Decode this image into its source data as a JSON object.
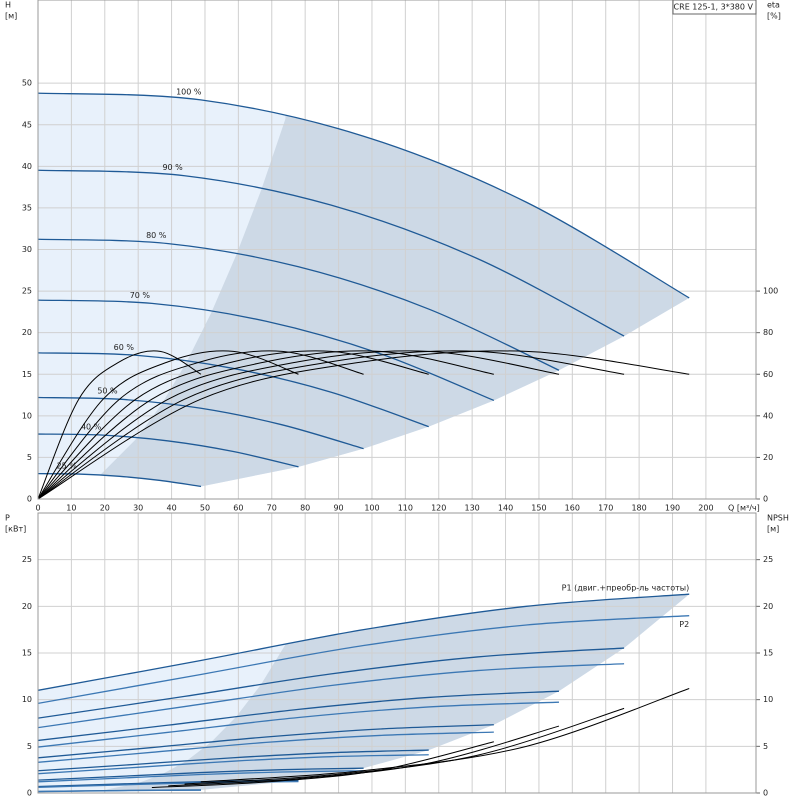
{
  "chart_data": [
    {
      "type": "line",
      "title": "CRE 125-1, 3*380 V",
      "x_label": "Q [м³/ч]",
      "y_label": "H",
      "y_unit": "[м]",
      "y2_label": "eta",
      "y2_unit": "[%]",
      "xlim": [
        0,
        215
      ],
      "xticks": [
        0,
        10,
        20,
        30,
        40,
        50,
        60,
        70,
        80,
        90,
        100,
        110,
        120,
        130,
        140,
        150,
        160,
        170,
        180,
        190,
        200
      ],
      "ylim": [
        0,
        60
      ],
      "yticks": [
        0,
        5,
        10,
        15,
        20,
        25,
        30,
        35,
        40,
        45,
        50
      ],
      "y2lim": [
        0,
        240
      ],
      "y2ticks": [
        0,
        20,
        40,
        60,
        80,
        100
      ],
      "grid": true,
      "series": [
        {
          "name": "100 %",
          "color": "#1f5a96",
          "x": [
            0,
            48.75,
            97.5,
            146.25,
            195
          ],
          "values": [
            48.8,
            47.99,
            43.62,
            35.68,
            24.18
          ]
        },
        {
          "name": "90 %",
          "color": "#1f5a96",
          "x": [
            0,
            43.9,
            87.8,
            131.6,
            175.5
          ],
          "values": [
            39.53,
            38.87,
            35.33,
            28.9,
            19.59
          ]
        },
        {
          "name": "80 %",
          "color": "#1f5a96",
          "x": [
            0,
            39,
            78,
            117,
            156
          ],
          "values": [
            31.23,
            30.71,
            27.92,
            22.84,
            15.48
          ]
        },
        {
          "name": "70 %",
          "color": "#1f5a96",
          "x": [
            0,
            34.1,
            68.3,
            102.4,
            136.5
          ],
          "values": [
            23.91,
            23.52,
            21.37,
            17.48,
            11.85
          ]
        },
        {
          "name": "60 %",
          "color": "#1f5a96",
          "x": [
            0,
            29.3,
            58.5,
            87.8,
            117
          ],
          "values": [
            17.57,
            17.28,
            15.7,
            12.84,
            8.7
          ]
        },
        {
          "name": "50 %",
          "color": "#1f5a96",
          "x": [
            0,
            24.4,
            48.8,
            73.1,
            97.5
          ],
          "values": [
            12.2,
            12,
            10.91,
            8.92,
            6.05
          ]
        },
        {
          "name": "40 %",
          "color": "#1f5a96",
          "x": [
            0,
            19.5,
            39,
            58.5,
            78
          ],
          "values": [
            7.81,
            7.68,
            6.98,
            5.71,
            3.87
          ]
        },
        {
          "name": "25 %",
          "color": "#1f5a96",
          "x": [
            0,
            12.2,
            24.4,
            36.6,
            48.8
          ],
          "values": [
            3.05,
            3,
            2.73,
            2.23,
            1.51
          ]
        },
        {
          "color": "#000000",
          "axis": "y2",
          "x": [
            0,
            48.75,
            97.5,
            146.25,
            195
          ],
          "values": [
            0,
            48,
            66,
            71,
            60
          ]
        },
        {
          "color": "#000000",
          "axis": "y2",
          "x": [
            0,
            43.9,
            87.8,
            131.6,
            175.5
          ],
          "values": [
            0,
            48,
            66,
            71,
            60
          ]
        },
        {
          "color": "#000000",
          "axis": "y2",
          "x": [
            0,
            39,
            78,
            117,
            156
          ],
          "values": [
            0,
            48,
            66,
            71,
            60
          ]
        },
        {
          "color": "#000000",
          "axis": "y2",
          "x": [
            0,
            34.1,
            68.3,
            102.4,
            136.5
          ],
          "values": [
            0,
            48,
            66,
            71,
            60
          ]
        },
        {
          "color": "#000000",
          "axis": "y2",
          "x": [
            0,
            29.3,
            58.5,
            87.8,
            117
          ],
          "values": [
            0,
            48,
            66,
            71,
            60
          ]
        },
        {
          "color": "#000000",
          "axis": "y2",
          "x": [
            0,
            24.4,
            48.8,
            73.1,
            97.5
          ],
          "values": [
            0,
            48,
            66,
            71,
            60
          ]
        },
        {
          "color": "#000000",
          "axis": "y2",
          "x": [
            0,
            19.5,
            39,
            58.5,
            78
          ],
          "values": [
            0,
            48,
            66,
            71,
            60
          ]
        },
        {
          "color": "#000000",
          "axis": "y2",
          "x": [
            0,
            12.2,
            24.4,
            36.6,
            48.8
          ],
          "values": [
            0,
            48,
            66,
            71,
            60
          ]
        }
      ]
    },
    {
      "type": "line",
      "y_label": "P",
      "y_unit": "[кВт]",
      "y2_label": "NPSH",
      "y2_unit": "[м]",
      "xlim": [
        0,
        215
      ],
      "xticks": [
        0,
        10,
        20,
        30,
        40,
        50,
        60,
        70,
        80,
        90,
        100,
        110,
        120,
        130,
        140,
        150,
        160,
        170,
        180,
        190,
        200
      ],
      "ylim": [
        0,
        30
      ],
      "yticks": [
        0,
        5,
        10,
        15,
        20,
        25
      ],
      "y2lim": [
        0,
        30
      ],
      "y2ticks": [
        0,
        5,
        10,
        15,
        20,
        25
      ],
      "grid": true,
      "series": [
        {
          "name": "P1 (двиг.+преобр-ль частоты)",
          "color": "#1f5a96",
          "x": [
            0,
            48.75,
            97.5,
            146.25,
            195
          ],
          "values": [
            11,
            14.2,
            17.5,
            20,
            21.3
          ]
        },
        {
          "color": "#1f5a96",
          "x": [
            0,
            43.9,
            87.8,
            131.6,
            175.5
          ],
          "values": [
            8.02,
            10.35,
            12.76,
            14.58,
            15.53
          ]
        },
        {
          "color": "#1f5a96",
          "x": [
            0,
            39,
            78,
            117,
            156
          ],
          "values": [
            5.63,
            7.27,
            8.96,
            10.24,
            10.91
          ]
        },
        {
          "color": "#1f5a96",
          "x": [
            0,
            34.1,
            68.3,
            102.4,
            136.5
          ],
          "values": [
            3.77,
            4.87,
            6.0,
            6.86,
            7.31
          ]
        },
        {
          "color": "#1f5a96",
          "x": [
            0,
            29.3,
            58.5,
            87.8,
            117
          ],
          "values": [
            2.38,
            3.07,
            3.78,
            4.32,
            4.6
          ]
        },
        {
          "color": "#1f5a96",
          "x": [
            0,
            24.4,
            48.8,
            73.1,
            97.5
          ],
          "values": [
            1.38,
            1.78,
            2.19,
            2.5,
            2.66
          ]
        },
        {
          "color": "#1f5a96",
          "x": [
            0,
            19.5,
            39,
            58.5,
            78
          ],
          "values": [
            0.7,
            0.91,
            1.12,
            1.28,
            1.36
          ]
        },
        {
          "color": "#1f5a96",
          "x": [
            0,
            12.2,
            24.4,
            36.6,
            48.8
          ],
          "values": [
            0.17,
            0.22,
            0.27,
            0.31,
            0.33
          ]
        },
        {
          "name": "P2",
          "color": "#3c78b4",
          "x": [
            0,
            48.75,
            97.5,
            146.25,
            195
          ],
          "values": [
            9.6,
            12.7,
            15.8,
            18,
            19
          ]
        },
        {
          "color": "#3c78b4",
          "x": [
            0,
            43.9,
            87.8,
            131.6,
            175.5
          ],
          "values": [
            7.0,
            9.26,
            11.52,
            13.12,
            13.85
          ]
        },
        {
          "color": "#3c78b4",
          "x": [
            0,
            39,
            78,
            117,
            156
          ],
          "values": [
            4.92,
            6.5,
            8.09,
            9.22,
            9.73
          ]
        },
        {
          "color": "#3c78b4",
          "x": [
            0,
            34.1,
            68.3,
            102.4,
            136.5
          ],
          "values": [
            3.29,
            4.36,
            5.42,
            6.17,
            6.52
          ]
        },
        {
          "color": "#3c78b4",
          "x": [
            0,
            29.3,
            58.5,
            87.8,
            117
          ],
          "values": [
            2.07,
            2.74,
            3.41,
            3.89,
            4.1
          ]
        },
        {
          "color": "#3c78b4",
          "x": [
            0,
            24.4,
            48.8,
            73.1,
            97.5
          ],
          "values": [
            1.2,
            1.59,
            1.98,
            2.25,
            2.38
          ]
        },
        {
          "color": "#3c78b4",
          "x": [
            0,
            19.5,
            39,
            58.5,
            78
          ],
          "values": [
            0.61,
            0.81,
            1.01,
            1.15,
            1.22
          ]
        },
        {
          "color": "#3c78b4",
          "x": [
            0,
            12.2,
            24.4,
            36.6,
            48.8
          ],
          "values": [
            0.15,
            0.2,
            0.25,
            0.28,
            0.3
          ]
        },
        {
          "color": "#000000",
          "axis": "y2",
          "x": [
            48.75,
            97.5,
            146.25,
            195
          ],
          "values": [
            1.2,
            2.4,
            5,
            11.2
          ]
        },
        {
          "color": "#000000",
          "axis": "y2",
          "x": [
            43.9,
            87.8,
            131.6,
            175.5
          ],
          "values": [
            0.97,
            1.94,
            4.05,
            9.07
          ]
        },
        {
          "color": "#000000",
          "axis": "y2",
          "x": [
            39,
            78,
            117,
            156
          ],
          "values": [
            0.77,
            1.54,
            3.2,
            7.17
          ]
        },
        {
          "color": "#000000",
          "axis": "y2",
          "x": [
            34.1,
            68.3,
            102.4,
            136.5
          ],
          "values": [
            0.59,
            1.18,
            2.45,
            5.49
          ]
        }
      ]
    }
  ]
}
